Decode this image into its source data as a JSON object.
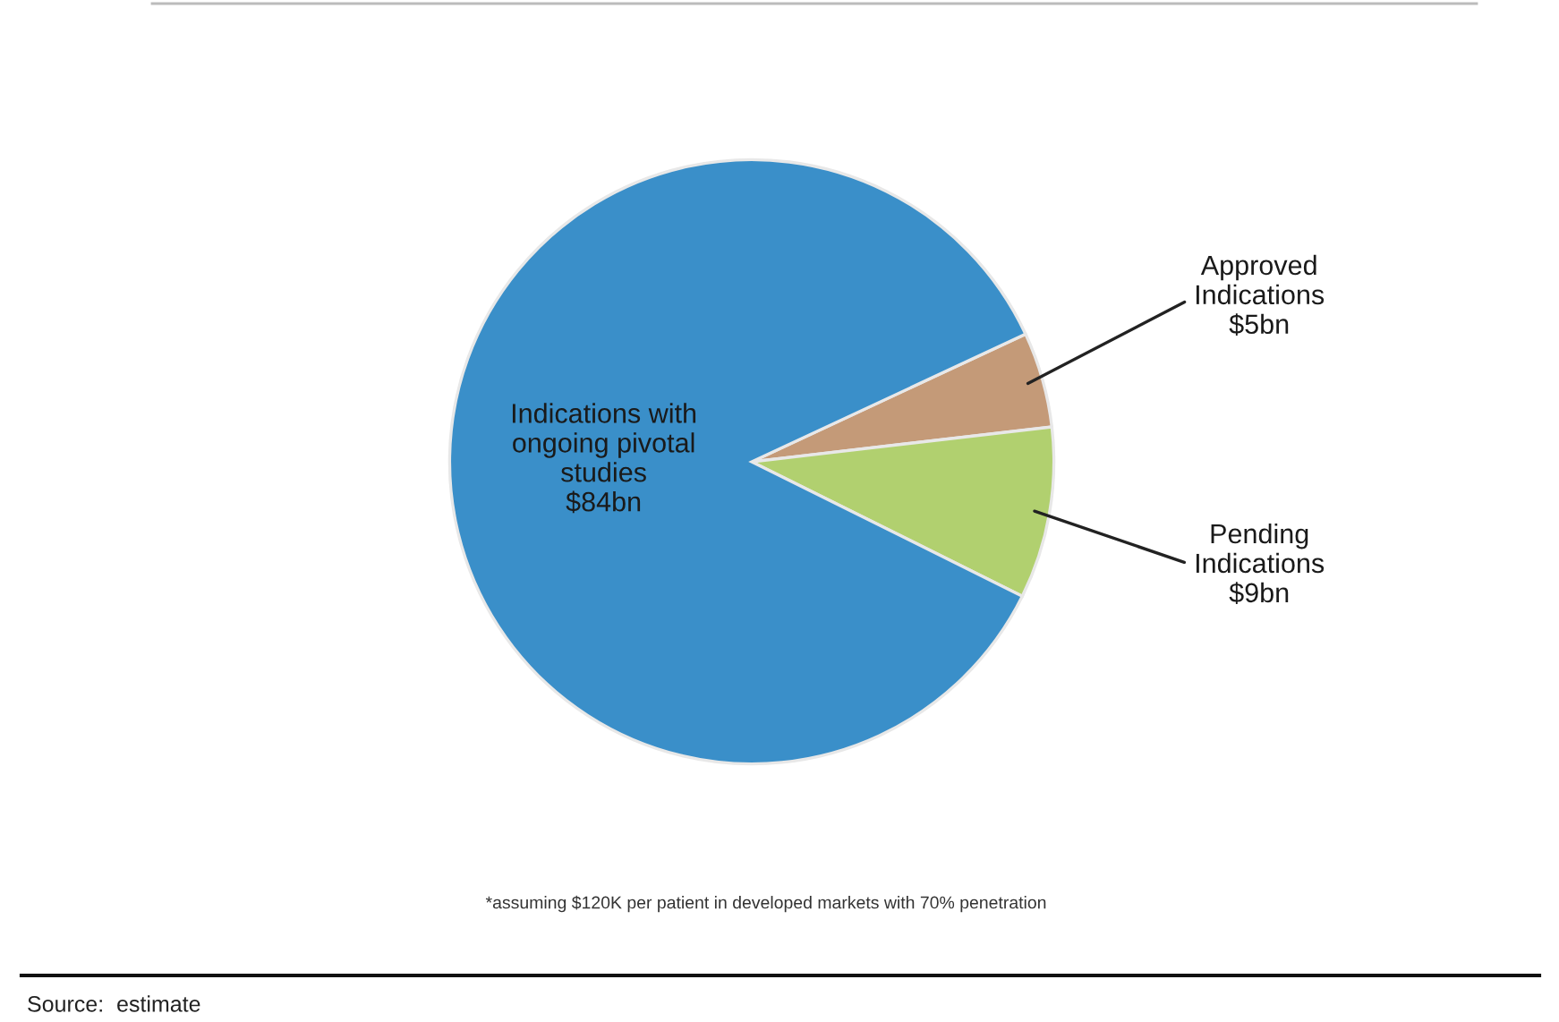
{
  "chart_data": {
    "type": "pie",
    "categories": [
      "Approved\nIndications",
      "Pending\nIndications",
      "Indications with\nongoing pivotal\nstudies"
    ],
    "values": [
      5,
      9,
      84
    ],
    "value_labels": [
      "$5bn",
      "$9bn",
      "$84bn"
    ],
    "colors": [
      "#c49a78",
      "#b1d06f",
      "#3a8fc9"
    ],
    "annotations": [
      "*assuming $120K per patient in developed markets with 70% penetration",
      "Source:  estimate"
    ]
  }
}
